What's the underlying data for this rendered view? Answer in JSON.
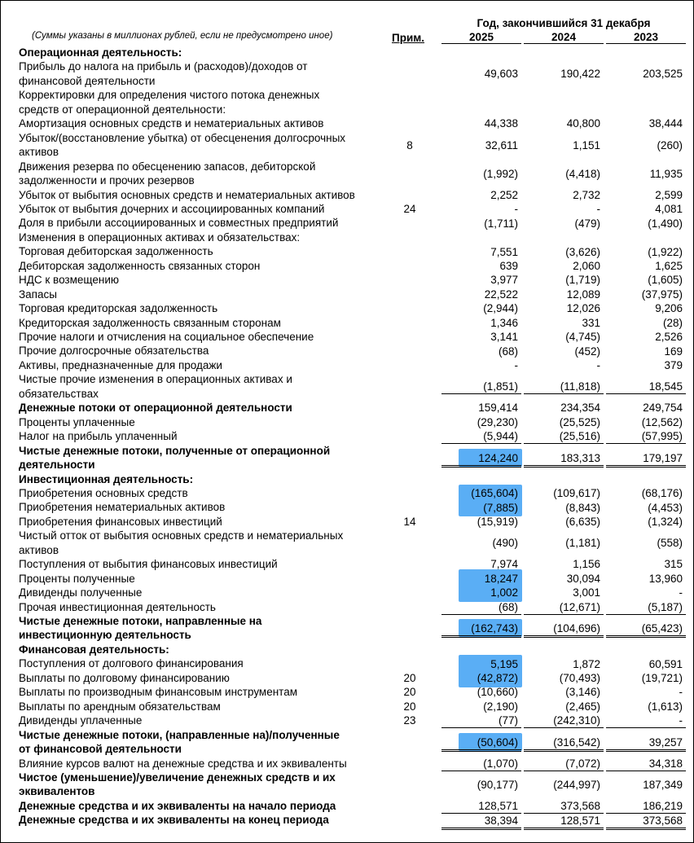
{
  "header": {
    "period": "Год, закончившийся 31 декабря",
    "units": "(Суммы указаны в миллионах рублей, если не предусмотрено иное)",
    "note": "Прим.",
    "years": [
      "2025",
      "2024",
      "2023"
    ]
  },
  "rows": [
    {
      "label": "Операционная деятельность:"
    },
    {
      "label": [
        "Прибыль до налога на прибыль и (расходов)/доходов от",
        "финансовой деятельности"
      ],
      "values": [
        "49,603",
        "190,422",
        "203,525"
      ]
    },
    {
      "label": [
        "Корректировки для определения чистого потока денежных",
        "средств от операционной деятельности:"
      ]
    },
    {
      "label": "Амортизация основных средств и нематериальных активов",
      "values": [
        "44,338",
        "40,800",
        "38,444"
      ]
    },
    {
      "label": [
        "Убыток/(восстановление убытка) от обесценения долгосрочных",
        "активов"
      ],
      "note": "8",
      "values": [
        "32,611",
        "1,151",
        "(260)"
      ]
    },
    {
      "label": [
        "Движения резерва по обесценению запасов, дебиторской",
        "задолженности и прочих резервов"
      ],
      "values": [
        "(1,992)",
        "(4,418)",
        "11,935"
      ]
    },
    {
      "label": "Убыток от выбытия основных средств и нематериальных активов",
      "values": [
        "2,252",
        "2,732",
        "2,599"
      ]
    },
    {
      "label": "Убыток от выбытия дочерних и ассоциированных компаний",
      "note": "24",
      "values": [
        "-",
        "-",
        "4,081"
      ]
    },
    {
      "label": "Доля в прибыли ассоциированных и совместных предприятий",
      "values": [
        "(1,711)",
        "(479)",
        "(1,490)"
      ]
    },
    {
      "label": "Изменения в операционных активах и обязательствах:"
    },
    {
      "label": "Торговая дебиторская задолженность",
      "values": [
        "7,551",
        "(3,626)",
        "(1,922)"
      ]
    },
    {
      "label": "Дебиторская задолженность связанных сторон",
      "values": [
        "639",
        "2,060",
        "1,625"
      ]
    },
    {
      "label": "НДС к возмещению",
      "values": [
        "3,977",
        "(1,719)",
        "(1,605)"
      ]
    },
    {
      "label": "Запасы",
      "values": [
        "22,522",
        "12,089",
        "(37,975)"
      ]
    },
    {
      "label": "Торговая кредиторская задолженность",
      "values": [
        "(2,944)",
        "12,026",
        "9,206"
      ]
    },
    {
      "label": "Кредиторская задолженность связанным сторонам",
      "values": [
        "1,346",
        "331",
        "(28)"
      ]
    },
    {
      "label": "Прочие налоги и отчисления на социальное обеспечение",
      "values": [
        "3,141",
        "(4,745)",
        "2,526"
      ]
    },
    {
      "label": "Прочие долгосрочные обязательства",
      "values": [
        "(68)",
        "(452)",
        "169"
      ]
    },
    {
      "label": "Активы, предназначенные для продажи",
      "values": [
        "-",
        "-",
        "379"
      ]
    },
    {
      "label": [
        "Чистые прочие изменения в операционных активах и",
        "обязательствах"
      ],
      "values": [
        "(1,851)",
        "(11,818)",
        "18,545"
      ]
    },
    {
      "label": "Денежные потоки от операционной деятельности",
      "values": [
        "159,414",
        "234,354",
        "249,754"
      ]
    },
    {
      "label": "Проценты уплаченные",
      "values": [
        "(29,230)",
        "(25,525)",
        "(12,562)"
      ]
    },
    {
      "label": "Налог на прибыль уплаченный",
      "values": [
        "(5,944)",
        "(25,516)",
        "(57,995)"
      ]
    },
    {
      "label": [
        "Чистые денежные потоки, полученные от операционной",
        "деятельности"
      ],
      "values": [
        "124,240",
        "183,313",
        "179,197"
      ]
    },
    {
      "label": "Инвестиционная деятельность:"
    },
    {
      "label": "Приобретения основных средств",
      "values": [
        "(165,604)",
        "(109,617)",
        "(68,176)"
      ]
    },
    {
      "label": "Приобретения нематериальных активов",
      "values": [
        "(7,885)",
        "(8,843)",
        "(4,453)"
      ]
    },
    {
      "label": "Приобретения финансовых инвестиций",
      "note": "14",
      "values": [
        "(15,919)",
        "(6,635)",
        "(1,324)"
      ]
    },
    {
      "label": [
        "Чистый отток от выбытия основных средств и нематериальных",
        "активов"
      ],
      "values": [
        "(490)",
        "(1,181)",
        "(558)"
      ]
    },
    {
      "label": "Поступления от выбытия финансовых инвестиций",
      "values": [
        "7,974",
        "1,156",
        "315"
      ]
    },
    {
      "label": "Проценты полученные",
      "values": [
        "18,247",
        "30,094",
        "13,960"
      ]
    },
    {
      "label": "Дивиденды полученные",
      "values": [
        "1,002",
        "3,001",
        "-"
      ]
    },
    {
      "label": "Прочая инвестиционная деятельность",
      "values": [
        "(68)",
        "(12,671)",
        "(5,187)"
      ]
    },
    {
      "label": [
        "Чистые денежные потоки, направленные на",
        "инвестиционную деятельность"
      ],
      "values": [
        "(162,743)",
        "(104,696)",
        "(65,423)"
      ]
    },
    {
      "label": "Финансовая деятельность:"
    },
    {
      "label": "Поступления от долгового финансирования",
      "values": [
        "5,195",
        "1,872",
        "60,591"
      ]
    },
    {
      "label": "Выплаты по долговому финансированию",
      "note": "20",
      "values": [
        "(42,872)",
        "(70,493)",
        "(19,721)"
      ]
    },
    {
      "label": "Выплаты по производным финансовым инструментам",
      "note": "20",
      "values": [
        "(10,660)",
        "(3,146)",
        "-"
      ]
    },
    {
      "label": "Выплаты по арендным обязательствам",
      "note": "20",
      "values": [
        "(2,190)",
        "(2,465)",
        "(1,613)"
      ]
    },
    {
      "label": "Дивиденды уплаченные",
      "note": "23",
      "values": [
        "(77)",
        "(242,310)",
        "-"
      ]
    },
    {
      "label": [
        "Чистые денежные потоки, (направленные на)/полученные",
        "от финансовой деятельности"
      ],
      "values": [
        "(50,604)",
        "(316,542)",
        "39,257"
      ]
    },
    {
      "label": "Влияние курсов валют на денежные средства и их эквиваленты",
      "values": [
        "(1,070)",
        "(7,072)",
        "34,318"
      ]
    },
    {
      "label": [
        "Чистое (уменьшение)/увеличение денежных средств и их",
        "эквивалентов"
      ],
      "values": [
        "(90,177)",
        "(244,997)",
        "187,349"
      ]
    },
    {
      "label": "Денежные средства и их эквиваленты на начало периода",
      "values": [
        "128,571",
        "373,568",
        "186,219"
      ]
    },
    {
      "label": "Денежные средства и их эквиваленты на конец периода",
      "values": [
        "38,394",
        "128,571",
        "373,568"
      ]
    }
  ]
}
